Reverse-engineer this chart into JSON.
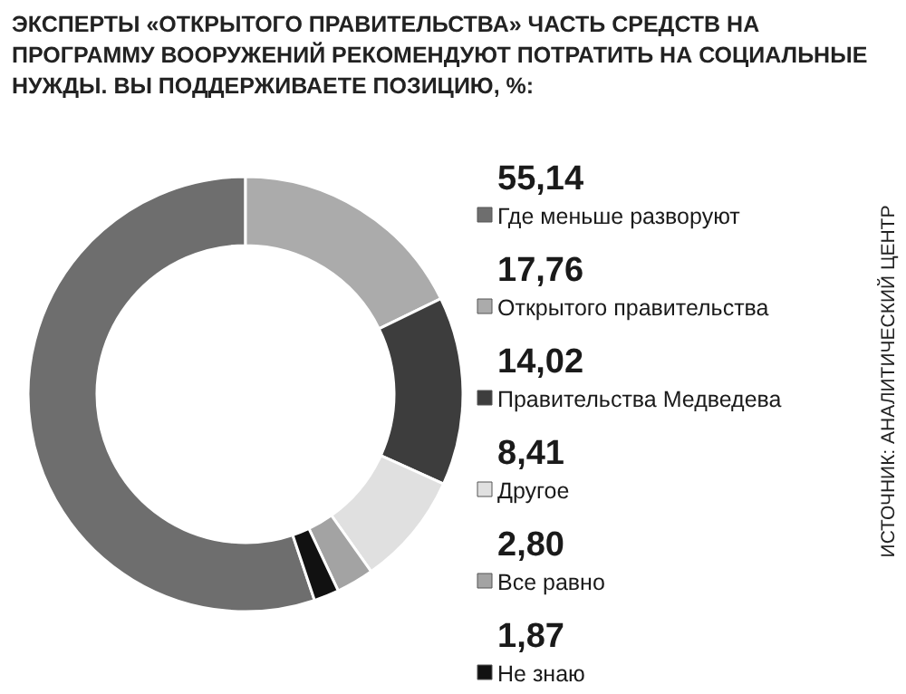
{
  "chart_data": {
    "type": "donut",
    "title": "ЭКСПЕРТЫ «ОТКРЫТОГО ПРАВИТЕЛЬСТВА» ЧАСТЬ СРЕДСТВ НА ПРОГРАММУ ВООРУЖЕНИЙ РЕКОМЕНДУЮТ ПОТРАТИТЬ НА СОЦИАЛЬНЫЕ НУЖДЫ. ВЫ ПОДДЕРЖИВАЕТЕ ПОЗИЦИЮ, %:",
    "categories": [
      "Где меньше разворуют",
      "Открытого правительства",
      "Правительства Медведева",
      "Другое",
      "Все равно",
      "Не знаю"
    ],
    "values": [
      55.14,
      17.76,
      14.02,
      8.41,
      2.8,
      1.87
    ],
    "value_labels": [
      "55,14",
      "17,76",
      "14,02",
      "8,41",
      "2,80",
      "1,87"
    ],
    "colors": [
      "#6e6e6e",
      "#ababab",
      "#3d3d3d",
      "#e0e0e0",
      "#a3a3a3",
      "#111111"
    ],
    "legend": "right",
    "annotations": [
      "ИСТОЧНИК: АНАЛИТИЧЕСКИЙ ЦЕНТР"
    ]
  }
}
